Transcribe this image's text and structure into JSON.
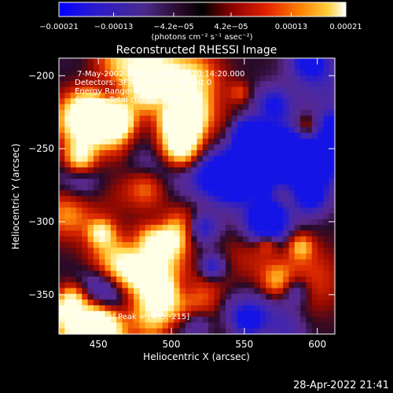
{
  "chart_data": {
    "type": "heatmap",
    "title": "Reconstructed RHESSI Image",
    "xlabel": "Heliocentric X (arcsec)",
    "ylabel": "Heliocentric Y (arcsec)",
    "xlim": [
      423,
      612
    ],
    "ylim": [
      -377,
      -188
    ],
    "x_ticks": [
      450,
      500,
      550,
      600
    ],
    "y_ticks": [
      -200,
      -250,
      -300,
      -350
    ],
    "x_tick_labels": [
      "450",
      "500",
      "550",
      "600"
    ],
    "y_tick_labels": [
      "−200",
      "−250",
      "−300",
      "−350"
    ],
    "colorbar": {
      "min": -0.00021,
      "max": 0.00021,
      "ticks": [
        -0.00021,
        -0.00013,
        -4.2e-05,
        4.2e-05,
        0.00013,
        0.00021
      ],
      "tick_labels": [
        "−0.00021",
        "−0.00013",
        "−4.2e−05",
        "4.2e−05",
        "0.00013",
        "0.00021"
      ],
      "unit_label": "(photons cm⁻² s⁻¹ asec⁻²)"
    },
    "annotations": {
      "time_range": "7-May-2002 20:08:20.000 to 20:14:20.000",
      "detectors": "Detectors: 3F 4F 5F 6F 7F 8F, Att 0",
      "energy_range": "Energy Range: 25.0 - 50.0 keV",
      "method": "Clean     Total counts: 4.37E+03",
      "peak_position": "Position of Peak = [485,-215]"
    },
    "peak": [
      485,
      -215
    ]
  },
  "footer": {
    "timestamp": "28-Apr-2022 21:41"
  },
  "colors": {
    "background": "#000000",
    "blue": "#1a1aff",
    "purple": "#5a2a9a",
    "red": "#c81e00",
    "orange": "#ff8c00",
    "yellow": "#ffe060",
    "white": "#ffffff"
  }
}
